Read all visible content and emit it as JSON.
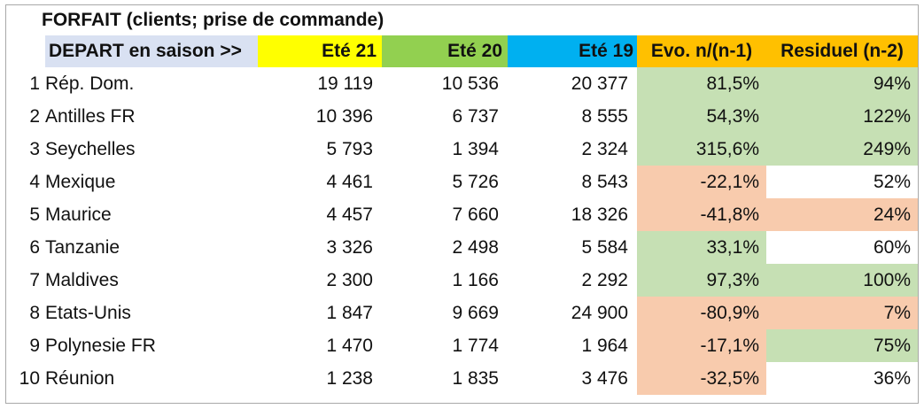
{
  "title": "FORFAIT (clients; prise de commande)",
  "headers": {
    "depart": "DEPART en saison >>",
    "ete21": "Eté 21",
    "ete20": "Eté 20",
    "ete19": "Eté 19",
    "evo": "Evo. n/(n-1)",
    "residuel": "Residuel (n-2)"
  },
  "colors": {
    "depart_bg": "#d9e1f2",
    "ete21_bg": "#ffff00",
    "ete20_bg": "#92d050",
    "ete19_bg": "#00b0f0",
    "evo_head_bg": "#ffc000",
    "res_head_bg": "#ffc000",
    "positive": "#c6e0b4",
    "negative": "#f8cbad",
    "neutral": "#ffffff"
  },
  "rows": [
    {
      "rank": "1",
      "name": "Rép. Dom.",
      "ete21": "19 119",
      "ete20": "10 536",
      "ete19": "20 377",
      "evo": "81,5%",
      "evo_tone": "positive",
      "res": "94%",
      "res_tone": "positive"
    },
    {
      "rank": "2",
      "name": "Antilles FR",
      "ete21": "10 396",
      "ete20": "6 737",
      "ete19": "8 555",
      "evo": "54,3%",
      "evo_tone": "positive",
      "res": "122%",
      "res_tone": "positive"
    },
    {
      "rank": "3",
      "name": "Seychelles",
      "ete21": "5 793",
      "ete20": "1 394",
      "ete19": "2 324",
      "evo": "315,6%",
      "evo_tone": "positive",
      "res": "249%",
      "res_tone": "positive"
    },
    {
      "rank": "4",
      "name": "Mexique",
      "ete21": "4 461",
      "ete20": "5 726",
      "ete19": "8 543",
      "evo": "-22,1%",
      "evo_tone": "negative",
      "res": "52%",
      "res_tone": "neutral"
    },
    {
      "rank": "5",
      "name": "Maurice",
      "ete21": "4 457",
      "ete20": "7 660",
      "ete19": "18 326",
      "evo": "-41,8%",
      "evo_tone": "negative",
      "res": "24%",
      "res_tone": "negative"
    },
    {
      "rank": "6",
      "name": "Tanzanie",
      "ete21": "3 326",
      "ete20": "2 498",
      "ete19": "5 584",
      "evo": "33,1%",
      "evo_tone": "positive",
      "res": "60%",
      "res_tone": "neutral"
    },
    {
      "rank": "7",
      "name": "Maldives",
      "ete21": "2 300",
      "ete20": "1 166",
      "ete19": "2 292",
      "evo": "97,3%",
      "evo_tone": "positive",
      "res": "100%",
      "res_tone": "positive"
    },
    {
      "rank": "8",
      "name": "Etats-Unis",
      "ete21": "1 847",
      "ete20": "9 669",
      "ete19": "24 900",
      "evo": "-80,9%",
      "evo_tone": "negative",
      "res": "7%",
      "res_tone": "negative"
    },
    {
      "rank": "9",
      "name": "Polynesie FR",
      "ete21": "1 470",
      "ete20": "1 774",
      "ete19": "1 964",
      "evo": "-17,1%",
      "evo_tone": "negative",
      "res": "75%",
      "res_tone": "positive"
    },
    {
      "rank": "10",
      "name": "Réunion",
      "ete21": "1 238",
      "ete20": "1 835",
      "ete19": "3 476",
      "evo": "-32,5%",
      "evo_tone": "negative",
      "res": "36%",
      "res_tone": "neutral"
    }
  ]
}
